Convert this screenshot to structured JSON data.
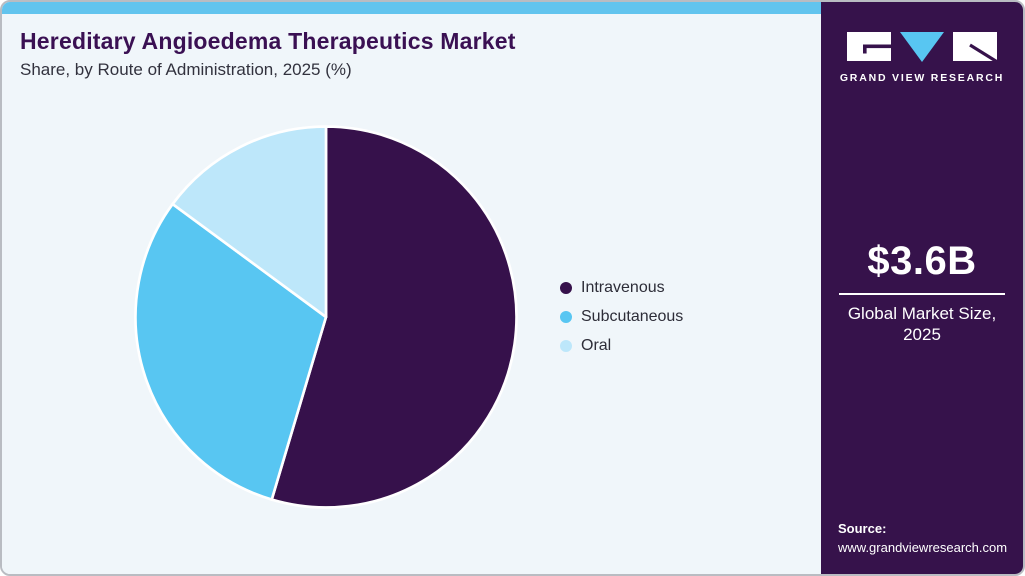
{
  "header": {
    "title": "Hereditary Angioedema Therapeutics Market",
    "subtitle": "Share, by Route of Administration, 2025 (%)"
  },
  "chart_data": {
    "type": "pie",
    "title": "Hereditary Angioedema Therapeutics Market Share, by Route of Administration, 2025 (%)",
    "unit": "percent",
    "start_angle_deg": 0,
    "direction": "clockwise",
    "legend_position": "right",
    "slices": [
      {
        "label": "Intravenous",
        "value": 54.6,
        "color": "#36114B"
      },
      {
        "label": "Subcutaneous",
        "value": 30.5,
        "color": "#58C6F2"
      },
      {
        "label": "Oral",
        "value": 14.9,
        "color": "#BDE7FA"
      }
    ]
  },
  "sidebar": {
    "brand_name": "GRAND VIEW RESEARCH",
    "market_size_value": "$3.6B",
    "market_size_label": "Global Market Size, 2025",
    "source_label": "Source:",
    "source_url": "www.grandviewresearch.com"
  },
  "theme": {
    "accent_bar": "#62C4EE",
    "card_bg": "#F0F6FA",
    "sidebar_bg": "#36124B",
    "title_color": "#3A1053",
    "logo_v_color": "#58C6F2"
  }
}
